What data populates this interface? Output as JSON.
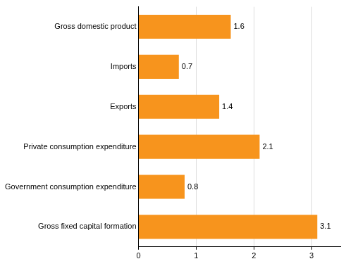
{
  "chart_data": {
    "type": "bar",
    "orientation": "horizontal",
    "categories": [
      "Gross domestic product",
      "Imports",
      "Exports",
      "Private consumption expenditure",
      "Government consumption expenditure",
      "Gross fixed capital formation"
    ],
    "values": [
      1.6,
      0.7,
      1.4,
      2.1,
      0.8,
      3.1
    ],
    "color": "#f7941d",
    "xlim": [
      0,
      3.5
    ],
    "xticks": [
      0,
      1,
      2,
      3
    ],
    "grid": true,
    "data_labels": true
  }
}
